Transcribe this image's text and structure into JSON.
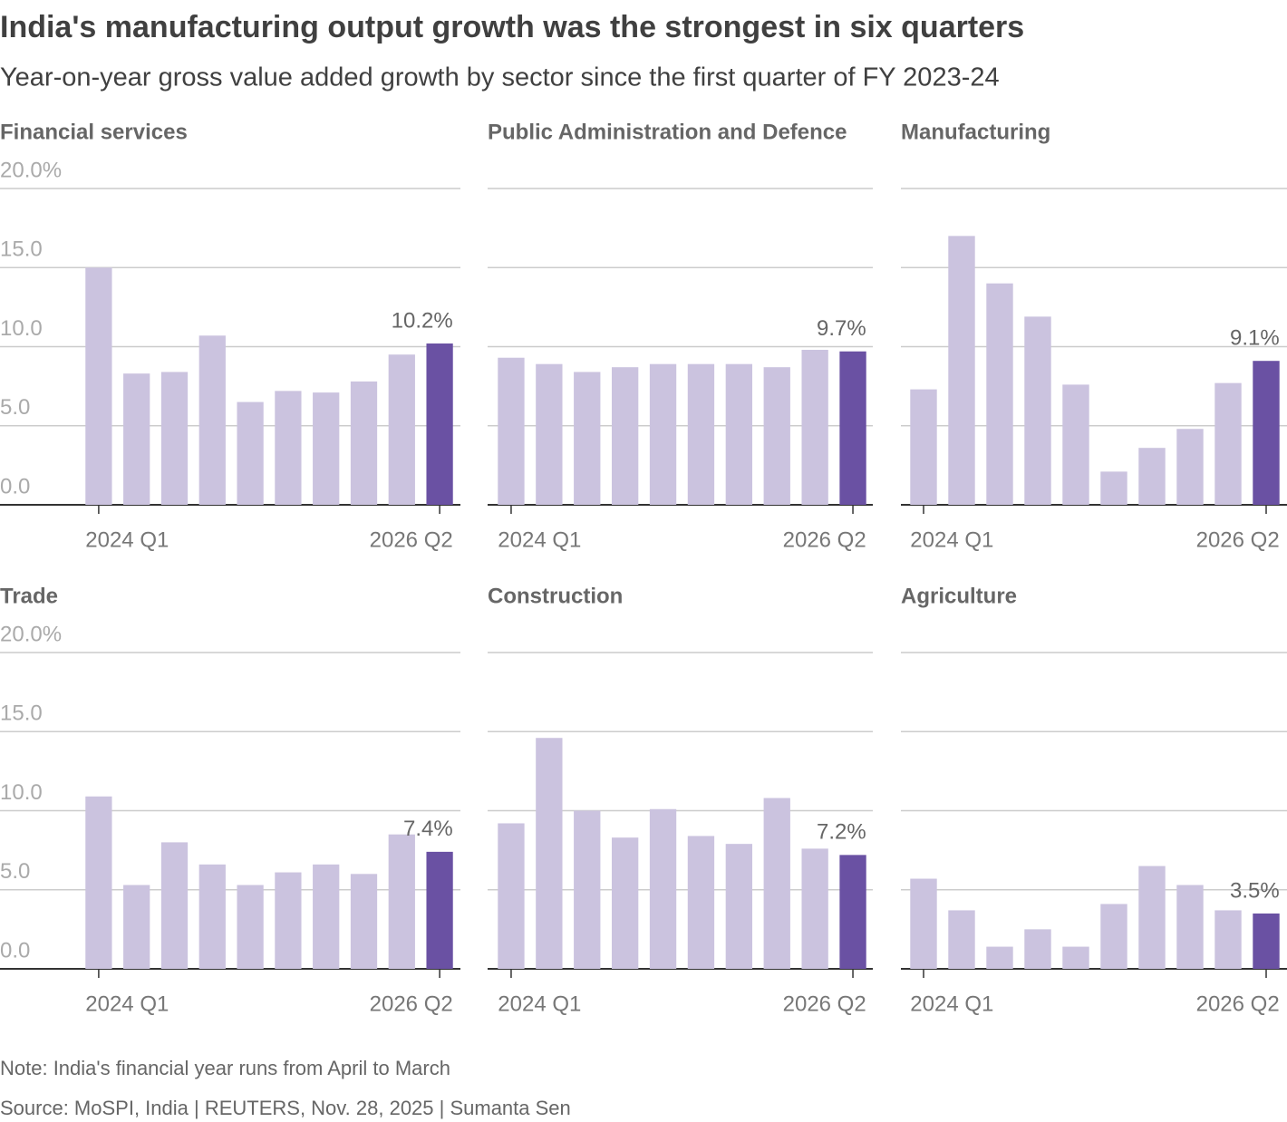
{
  "title": "India's manufacturing output growth was the strongest in six quarters",
  "subtitle": "Year-on-year gross value added growth by sector since the first quarter of FY 2023-24",
  "note": "Note: India's financial year runs from April to March",
  "source": "Source: MoSPI, India | REUTERS, Nov. 28, 2025 | Sumanta Sen",
  "chart_data": [
    {
      "type": "bar",
      "title": "Financial services",
      "categories": [
        "2024 Q1",
        null,
        null,
        null,
        null,
        null,
        null,
        null,
        null,
        "2026 Q2"
      ],
      "values": [
        15.0,
        8.3,
        8.4,
        10.7,
        6.5,
        7.2,
        7.1,
        7.8,
        9.5,
        10.2
      ],
      "value_labels": [
        null,
        null,
        null,
        null,
        null,
        null,
        null,
        null,
        null,
        "10.2%"
      ],
      "colors": [
        "#cbc3df",
        "#cbc3df",
        "#cbc3df",
        "#cbc3df",
        "#cbc3df",
        "#cbc3df",
        "#cbc3df",
        "#cbc3df",
        "#cbc3df",
        "#6a51a3"
      ],
      "ylim": [
        0,
        20
      ],
      "yticks": [
        {
          "value": 0,
          "label": "0.0"
        },
        {
          "value": 5,
          "label": "5.0"
        },
        {
          "value": 10,
          "label": "10.0"
        },
        {
          "value": 15,
          "label": "15.0"
        },
        {
          "value": 20,
          "label": "20.0%"
        }
      ],
      "ytick_labels": true,
      "grid": true
    },
    {
      "type": "bar",
      "title": "Public Administration and Defence",
      "categories": [
        "2024 Q1",
        null,
        null,
        null,
        null,
        null,
        null,
        null,
        null,
        "2026 Q2"
      ],
      "values": [
        9.3,
        8.9,
        8.4,
        8.7,
        8.9,
        8.9,
        8.9,
        8.7,
        9.8,
        9.7
      ],
      "value_labels": [
        null,
        null,
        null,
        null,
        null,
        null,
        null,
        null,
        null,
        "9.7%"
      ],
      "colors": [
        "#cbc3df",
        "#cbc3df",
        "#cbc3df",
        "#cbc3df",
        "#cbc3df",
        "#cbc3df",
        "#cbc3df",
        "#cbc3df",
        "#cbc3df",
        "#6a51a3"
      ],
      "ylim": [
        0,
        20
      ],
      "yticks": [
        0,
        5,
        10,
        15,
        20
      ],
      "ytick_labels": false,
      "grid": true
    },
    {
      "type": "bar",
      "title": "Manufacturing",
      "categories": [
        "2024 Q1",
        null,
        null,
        null,
        null,
        null,
        null,
        null,
        null,
        "2026 Q2"
      ],
      "values": [
        7.3,
        17.0,
        14.0,
        11.9,
        7.6,
        2.1,
        3.6,
        4.8,
        7.7,
        9.1
      ],
      "value_labels": [
        null,
        null,
        null,
        null,
        null,
        null,
        null,
        null,
        null,
        "9.1%"
      ],
      "colors": [
        "#cbc3df",
        "#cbc3df",
        "#cbc3df",
        "#cbc3df",
        "#cbc3df",
        "#cbc3df",
        "#cbc3df",
        "#cbc3df",
        "#cbc3df",
        "#6a51a3"
      ],
      "ylim": [
        0,
        20
      ],
      "yticks": [
        0,
        5,
        10,
        15,
        20
      ],
      "ytick_labels": false,
      "grid": true
    },
    {
      "type": "bar",
      "title": "Trade",
      "categories": [
        "2024 Q1",
        null,
        null,
        null,
        null,
        null,
        null,
        null,
        null,
        "2026 Q2"
      ],
      "values": [
        10.9,
        5.3,
        8.0,
        6.6,
        5.3,
        6.1,
        6.6,
        6.0,
        8.5,
        7.4
      ],
      "value_labels": [
        null,
        null,
        null,
        null,
        null,
        null,
        null,
        null,
        null,
        "7.4%"
      ],
      "colors": [
        "#cbc3df",
        "#cbc3df",
        "#cbc3df",
        "#cbc3df",
        "#cbc3df",
        "#cbc3df",
        "#cbc3df",
        "#cbc3df",
        "#cbc3df",
        "#6a51a3"
      ],
      "ylim": [
        0,
        20
      ],
      "yticks": [
        {
          "value": 0,
          "label": "0.0"
        },
        {
          "value": 5,
          "label": "5.0"
        },
        {
          "value": 10,
          "label": "10.0"
        },
        {
          "value": 15,
          "label": "15.0"
        },
        {
          "value": 20,
          "label": "20.0%"
        }
      ],
      "ytick_labels": true,
      "grid": true
    },
    {
      "type": "bar",
      "title": "Construction",
      "categories": [
        "2024 Q1",
        null,
        null,
        null,
        null,
        null,
        null,
        null,
        null,
        "2026 Q2"
      ],
      "values": [
        9.2,
        14.6,
        10.0,
        8.3,
        10.1,
        8.4,
        7.9,
        10.8,
        7.6,
        7.2
      ],
      "value_labels": [
        null,
        null,
        null,
        null,
        null,
        null,
        null,
        null,
        null,
        "7.2%"
      ],
      "colors": [
        "#cbc3df",
        "#cbc3df",
        "#cbc3df",
        "#cbc3df",
        "#cbc3df",
        "#cbc3df",
        "#cbc3df",
        "#cbc3df",
        "#cbc3df",
        "#6a51a3"
      ],
      "ylim": [
        0,
        20
      ],
      "yticks": [
        0,
        5,
        10,
        15,
        20
      ],
      "ytick_labels": false,
      "grid": true
    },
    {
      "type": "bar",
      "title": "Agriculture",
      "categories": [
        "2024 Q1",
        null,
        null,
        null,
        null,
        null,
        null,
        null,
        null,
        "2026 Q2"
      ],
      "values": [
        5.7,
        3.7,
        1.4,
        2.5,
        1.4,
        4.1,
        6.5,
        5.3,
        3.7,
        3.5
      ],
      "value_labels": [
        null,
        null,
        null,
        null,
        null,
        null,
        null,
        null,
        null,
        "3.5%"
      ],
      "colors": [
        "#cbc3df",
        "#cbc3df",
        "#cbc3df",
        "#cbc3df",
        "#cbc3df",
        "#cbc3df",
        "#cbc3df",
        "#cbc3df",
        "#cbc3df",
        "#6a51a3"
      ],
      "ylim": [
        0,
        20
      ],
      "yticks": [
        0,
        5,
        10,
        15,
        20
      ],
      "ytick_labels": false,
      "grid": true
    }
  ]
}
